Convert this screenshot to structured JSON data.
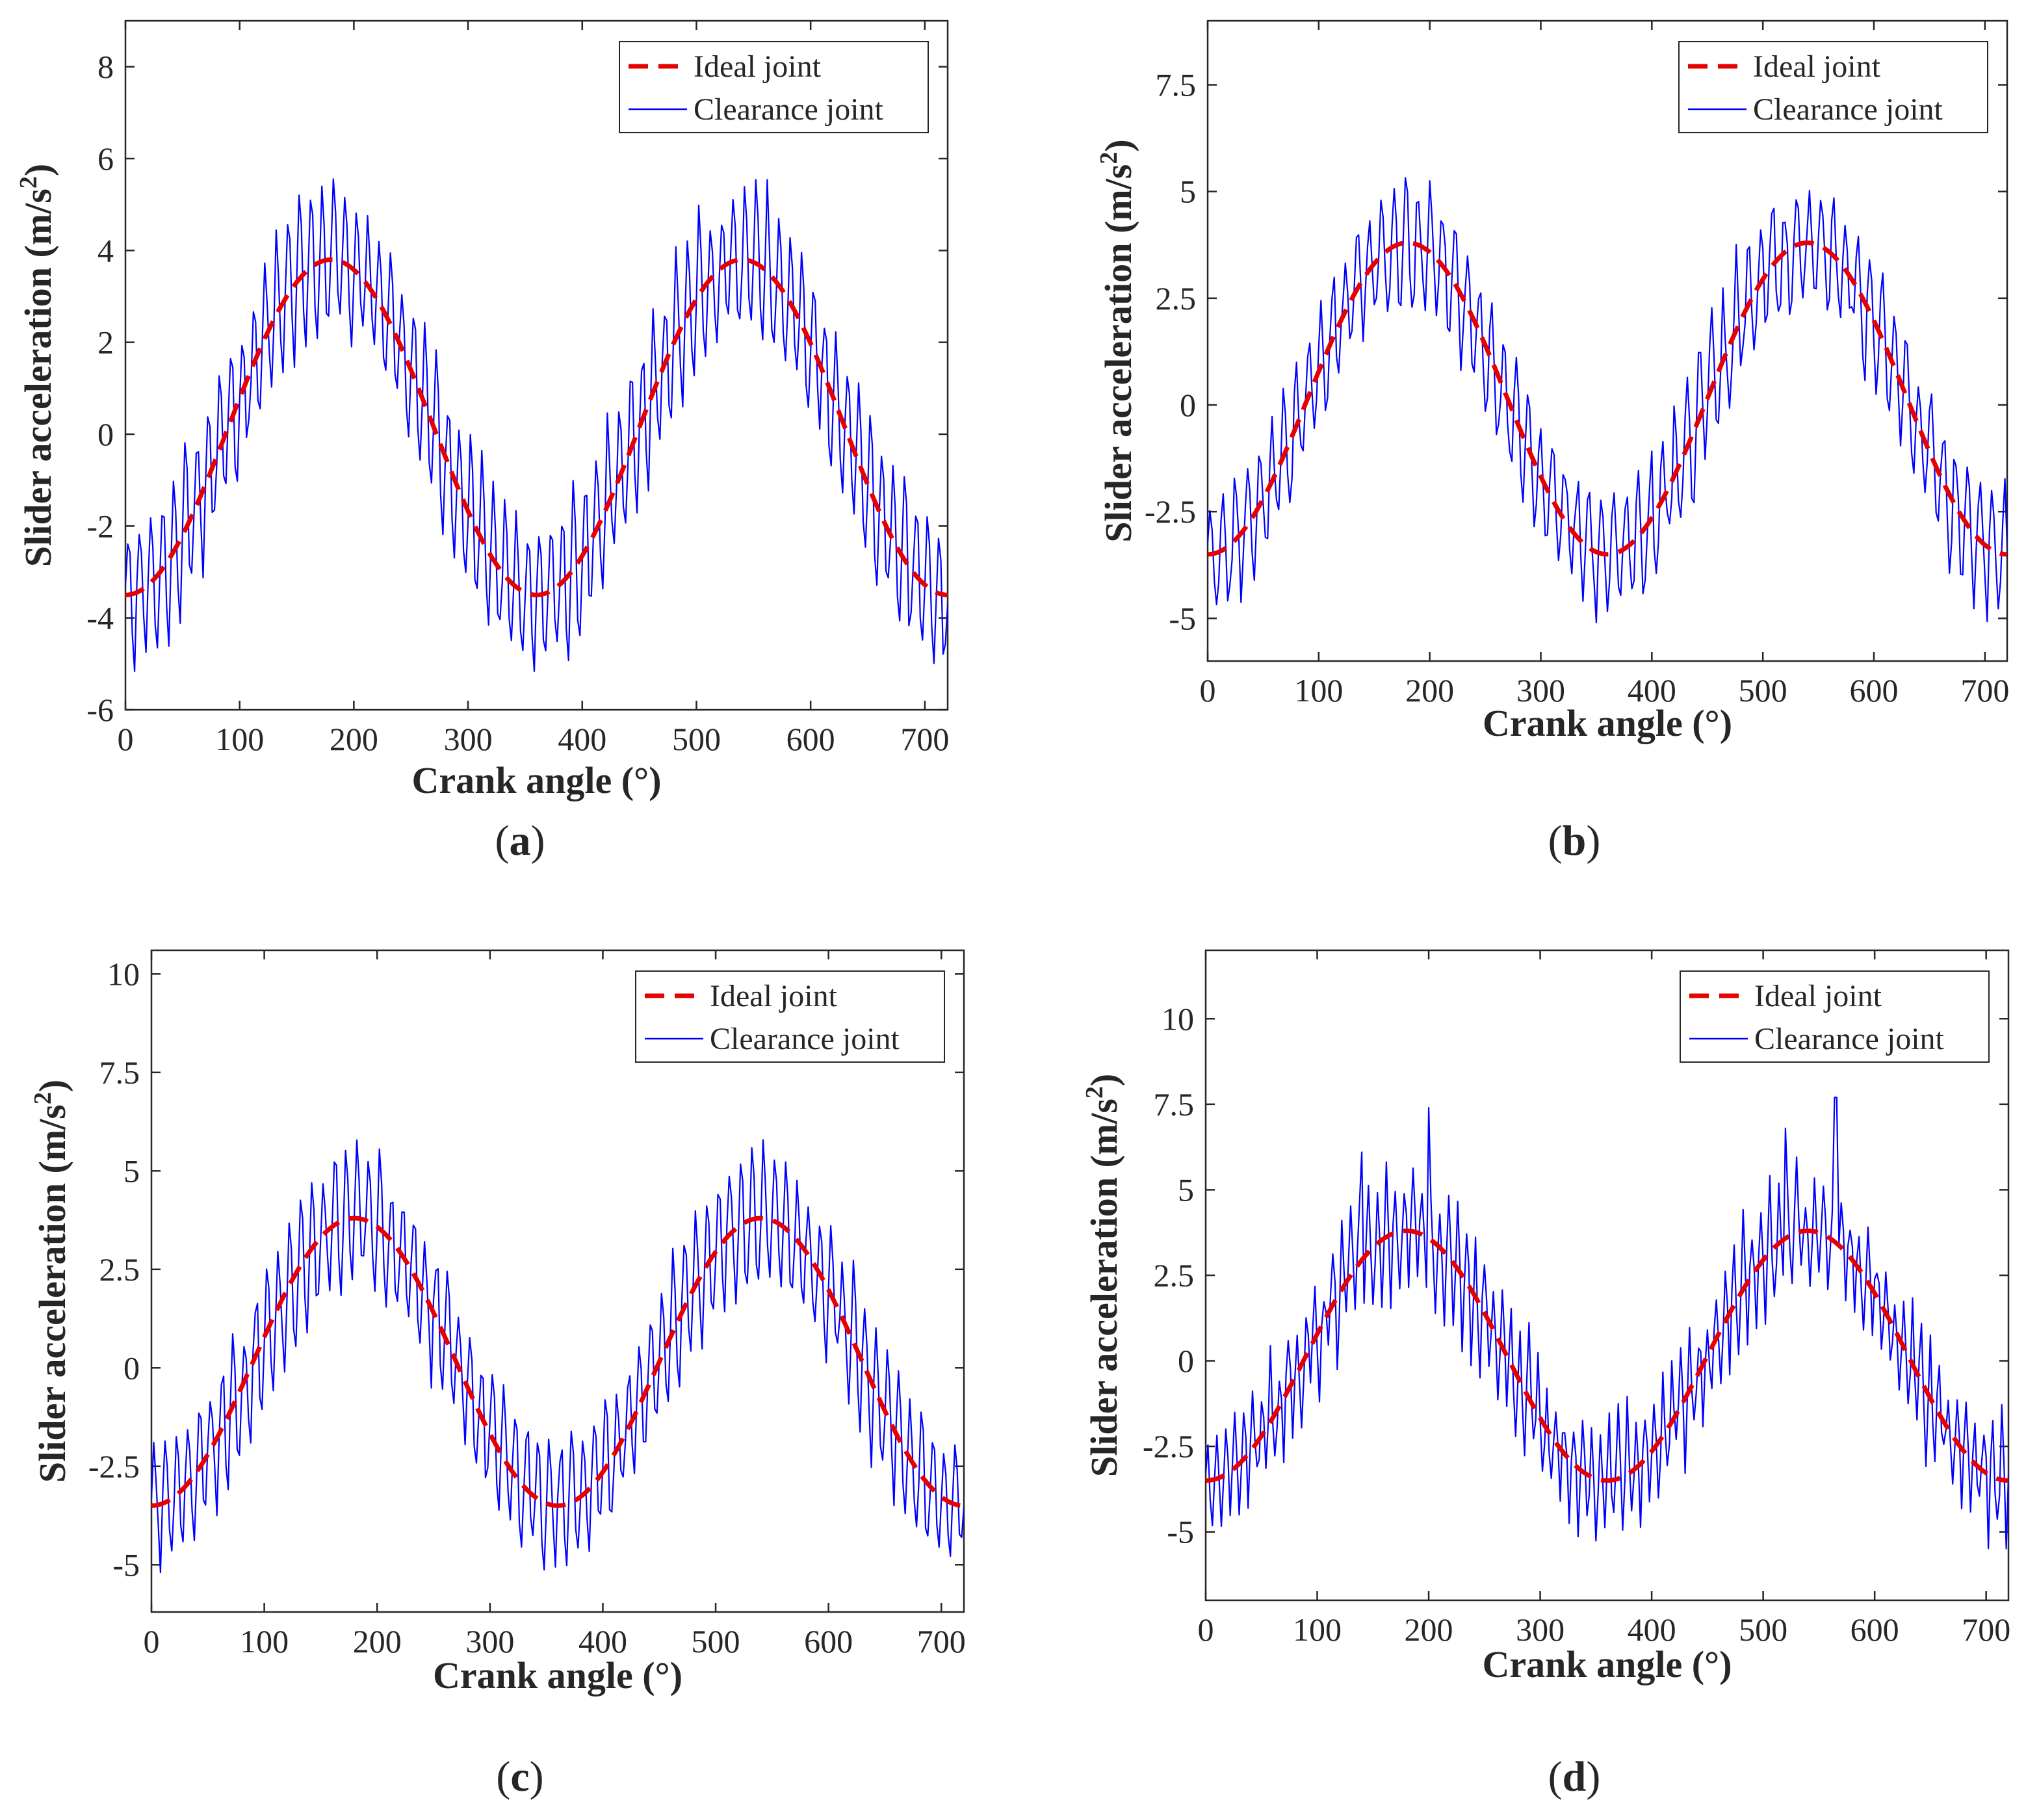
{
  "chart_data": [
    {
      "type": "line",
      "panel": "a",
      "caption_letter": "a",
      "xlabel": "Crank angle (°)",
      "ylabel_main": "Slider acceleration (m/s",
      "ylabel_sup": "2",
      "ylabel_close": ")",
      "xlim": [
        0,
        720
      ],
      "ylim": [
        -6,
        9
      ],
      "xticks": [
        0,
        100,
        200,
        300,
        400,
        500,
        600,
        700
      ],
      "xtick_labels": [
        "0",
        "100",
        "200",
        "300",
        "400",
        "500",
        "600",
        "700"
      ],
      "yticks": [
        -6,
        -4,
        -2,
        0,
        2,
        4,
        6,
        8
      ],
      "ytick_labels": [
        "-6",
        "-4",
        "-2",
        "0",
        "2",
        "4",
        "6",
        "8"
      ],
      "legend_position": "top-right",
      "series": [
        {
          "name": "Ideal joint",
          "style": "dashed",
          "color": "#e60000",
          "mean": 0.15,
          "amplitude": 3.65,
          "x_start": 0,
          "x_end": 720,
          "x_step": 2
        },
        {
          "name": "Clearance joint",
          "style": "solid",
          "color": "#0000ff",
          "mean": 0.15,
          "amplitude": 3.65,
          "x_start": 0,
          "x_end": 720,
          "x_step": 2,
          "oscillation_amplitude": 1.55,
          "oscillation_period_deg": 10,
          "noise_amplitude": 0.25
        }
      ]
    },
    {
      "type": "line",
      "panel": "b",
      "caption_letter": "b",
      "xlabel": "Crank angle (°)",
      "ylabel_main": "Slider acceleration (m/s",
      "ylabel_sup": "2",
      "ylabel_close": ")",
      "xlim": [
        0,
        720
      ],
      "ylim": [
        -6,
        9
      ],
      "xticks": [
        0,
        100,
        200,
        300,
        400,
        500,
        600,
        700
      ],
      "xtick_labels": [
        "0",
        "100",
        "200",
        "300",
        "400",
        "500",
        "600",
        "700"
      ],
      "yticks": [
        -5,
        -2.5,
        0,
        2.5,
        5,
        7.5
      ],
      "ytick_labels": [
        "-5",
        "-2.5",
        "0",
        "2.5",
        "5",
        "7.5"
      ],
      "legend_position": "top-right",
      "series": [
        {
          "name": "Ideal joint",
          "style": "dashed",
          "color": "#e60000",
          "mean": 0.15,
          "amplitude": 3.65,
          "x_start": 0,
          "x_end": 720,
          "x_step": 2
        },
        {
          "name": "Clearance joint",
          "style": "solid",
          "color": "#0000ff",
          "mean": 0.15,
          "amplitude": 3.65,
          "x_start": 0,
          "x_end": 720,
          "x_step": 2,
          "oscillation_amplitude": 1.35,
          "oscillation_period_deg": 11,
          "noise_amplitude": 0.4
        }
      ]
    },
    {
      "type": "line",
      "panel": "c",
      "caption_letter": "c",
      "xlabel": "Crank angle (°)",
      "ylabel_main": "Slider acceleration (m/s",
      "ylabel_sup": "2",
      "ylabel_close": ")",
      "xlim": [
        0,
        720
      ],
      "ylim": [
        -6.2,
        10.6
      ],
      "xticks": [
        0,
        100,
        200,
        300,
        400,
        500,
        600,
        700
      ],
      "xtick_labels": [
        "0",
        "100",
        "200",
        "300",
        "400",
        "500",
        "600",
        "700"
      ],
      "yticks": [
        -5,
        -2.5,
        0,
        2.5,
        5,
        7.5,
        10
      ],
      "ytick_labels": [
        "-5",
        "-2.5",
        "0",
        "2.5",
        "5",
        "7.5",
        "10"
      ],
      "legend_position": "top-right",
      "series": [
        {
          "name": "Ideal joint",
          "style": "dashed",
          "color": "#e60000",
          "mean": 0.15,
          "amplitude": 3.65,
          "x_start": 0,
          "x_end": 720,
          "x_step": 2
        },
        {
          "name": "Clearance joint",
          "style": "solid",
          "color": "#0000ff",
          "mean": 0.15,
          "amplitude": 3.65,
          "x_start": 0,
          "x_end": 720,
          "x_step": 2,
          "oscillation_amplitude": 1.6,
          "oscillation_period_deg": 10,
          "noise_amplitude": 0.35
        }
      ]
    },
    {
      "type": "line",
      "panel": "d",
      "caption_letter": "d",
      "xlabel": "Crank angle (°)",
      "ylabel_main": "Slider acceleration (m/s",
      "ylabel_sup": "2",
      "ylabel_close": ")",
      "xlim": [
        0,
        720
      ],
      "ylim": [
        -7,
        12
      ],
      "xticks": [
        0,
        100,
        200,
        300,
        400,
        500,
        600,
        700
      ],
      "xtick_labels": [
        "0",
        "100",
        "200",
        "300",
        "400",
        "500",
        "600",
        "700"
      ],
      "yticks": [
        -5,
        -2.5,
        0,
        2.5,
        5,
        7.5,
        10
      ],
      "ytick_labels": [
        "-5",
        "-2.5",
        "0",
        "2.5",
        "5",
        "7.5",
        "10"
      ],
      "legend_position": "top-right",
      "series": [
        {
          "name": "Ideal joint",
          "style": "dashed",
          "color": "#e60000",
          "mean": 0.15,
          "amplitude": 3.65,
          "x_start": 0,
          "x_end": 720,
          "x_step": 2
        },
        {
          "name": "Clearance joint",
          "style": "solid",
          "color": "#0000ff",
          "mean": 0.15,
          "amplitude": 3.65,
          "x_start": 0,
          "x_end": 720,
          "x_step": 2,
          "oscillation_amplitude": 1.5,
          "oscillation_period_deg": 8,
          "noise_amplitude": 0.6,
          "spikes": [
            [
              140,
              6.1
            ],
            [
              200,
              7.4
            ],
            [
              520,
              6.8
            ],
            [
              565,
              7.7
            ]
          ]
        }
      ]
    }
  ]
}
